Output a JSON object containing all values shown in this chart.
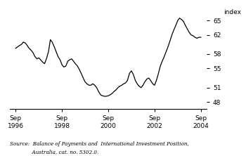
{
  "title": "",
  "ylabel": "index",
  "ylim": [
    46.5,
    67.0
  ],
  "yticks": [
    48,
    51,
    55,
    58,
    62,
    65
  ],
  "source_line1": "Source:  Balance of Payments and  International Investment Position,",
  "source_line2": "              Australia, cat. no. 5302.0.",
  "line_color": "#000000",
  "line_width": 0.9,
  "background_color": "#ffffff",
  "x_tick_years": [
    1996,
    1998,
    2000,
    2002,
    2004
  ],
  "data": [
    [
      1996.75,
      59.2
    ],
    [
      1996.92,
      59.8
    ],
    [
      1997.0,
      60.0
    ],
    [
      1997.08,
      60.5
    ],
    [
      1997.17,
      60.3
    ],
    [
      1997.25,
      59.8
    ],
    [
      1997.33,
      59.2
    ],
    [
      1997.42,
      58.8
    ],
    [
      1997.5,
      58.3
    ],
    [
      1997.58,
      57.5
    ],
    [
      1997.67,
      57.0
    ],
    [
      1997.75,
      57.2
    ],
    [
      1997.83,
      56.8
    ],
    [
      1997.92,
      56.3
    ],
    [
      1998.0,
      56.0
    ],
    [
      1998.08,
      57.0
    ],
    [
      1998.17,
      58.5
    ],
    [
      1998.25,
      61.0
    ],
    [
      1998.33,
      60.5
    ],
    [
      1998.42,
      59.5
    ],
    [
      1998.5,
      58.5
    ],
    [
      1998.58,
      57.5
    ],
    [
      1998.67,
      56.8
    ],
    [
      1998.75,
      55.8
    ],
    [
      1998.83,
      55.3
    ],
    [
      1998.92,
      55.5
    ],
    [
      1999.0,
      56.5
    ],
    [
      1999.08,
      56.8
    ],
    [
      1999.17,
      57.0
    ],
    [
      1999.25,
      56.5
    ],
    [
      1999.33,
      56.0
    ],
    [
      1999.42,
      55.5
    ],
    [
      1999.5,
      54.8
    ],
    [
      1999.58,
      54.0
    ],
    [
      1999.67,
      53.0
    ],
    [
      1999.75,
      52.2
    ],
    [
      1999.83,
      51.8
    ],
    [
      1999.92,
      51.5
    ],
    [
      2000.0,
      51.5
    ],
    [
      2000.08,
      51.8
    ],
    [
      2000.17,
      51.5
    ],
    [
      2000.25,
      51.0
    ],
    [
      2000.33,
      50.2
    ],
    [
      2000.42,
      49.5
    ],
    [
      2000.5,
      49.3
    ],
    [
      2000.58,
      49.2
    ],
    [
      2000.67,
      49.2
    ],
    [
      2000.75,
      49.3
    ],
    [
      2000.83,
      49.5
    ],
    [
      2000.92,
      49.8
    ],
    [
      2001.0,
      50.2
    ],
    [
      2001.08,
      50.5
    ],
    [
      2001.17,
      51.0
    ],
    [
      2001.25,
      51.3
    ],
    [
      2001.33,
      51.5
    ],
    [
      2001.42,
      51.8
    ],
    [
      2001.5,
      52.0
    ],
    [
      2001.58,
      52.5
    ],
    [
      2001.67,
      54.0
    ],
    [
      2001.75,
      54.5
    ],
    [
      2001.83,
      53.8
    ],
    [
      2001.92,
      52.5
    ],
    [
      2002.0,
      51.8
    ],
    [
      2002.08,
      51.3
    ],
    [
      2002.17,
      51.0
    ],
    [
      2002.25,
      51.5
    ],
    [
      2002.33,
      52.2
    ],
    [
      2002.42,
      52.8
    ],
    [
      2002.5,
      53.0
    ],
    [
      2002.58,
      52.5
    ],
    [
      2002.67,
      51.8
    ],
    [
      2002.75,
      51.5
    ],
    [
      2002.83,
      52.5
    ],
    [
      2002.92,
      54.0
    ],
    [
      2003.0,
      55.5
    ],
    [
      2003.08,
      56.5
    ],
    [
      2003.17,
      57.5
    ],
    [
      2003.25,
      58.5
    ],
    [
      2003.33,
      59.5
    ],
    [
      2003.42,
      60.8
    ],
    [
      2003.5,
      62.0
    ],
    [
      2003.58,
      63.0
    ],
    [
      2003.67,
      64.0
    ],
    [
      2003.75,
      65.0
    ],
    [
      2003.83,
      65.5
    ],
    [
      2003.92,
      65.2
    ],
    [
      2004.0,
      64.8
    ],
    [
      2004.08,
      64.0
    ],
    [
      2004.17,
      63.2
    ],
    [
      2004.25,
      62.5
    ],
    [
      2004.33,
      62.0
    ],
    [
      2004.42,
      61.8
    ],
    [
      2004.5,
      61.5
    ],
    [
      2004.58,
      61.3
    ],
    [
      2004.67,
      61.5
    ],
    [
      2004.75,
      61.5
    ]
  ]
}
